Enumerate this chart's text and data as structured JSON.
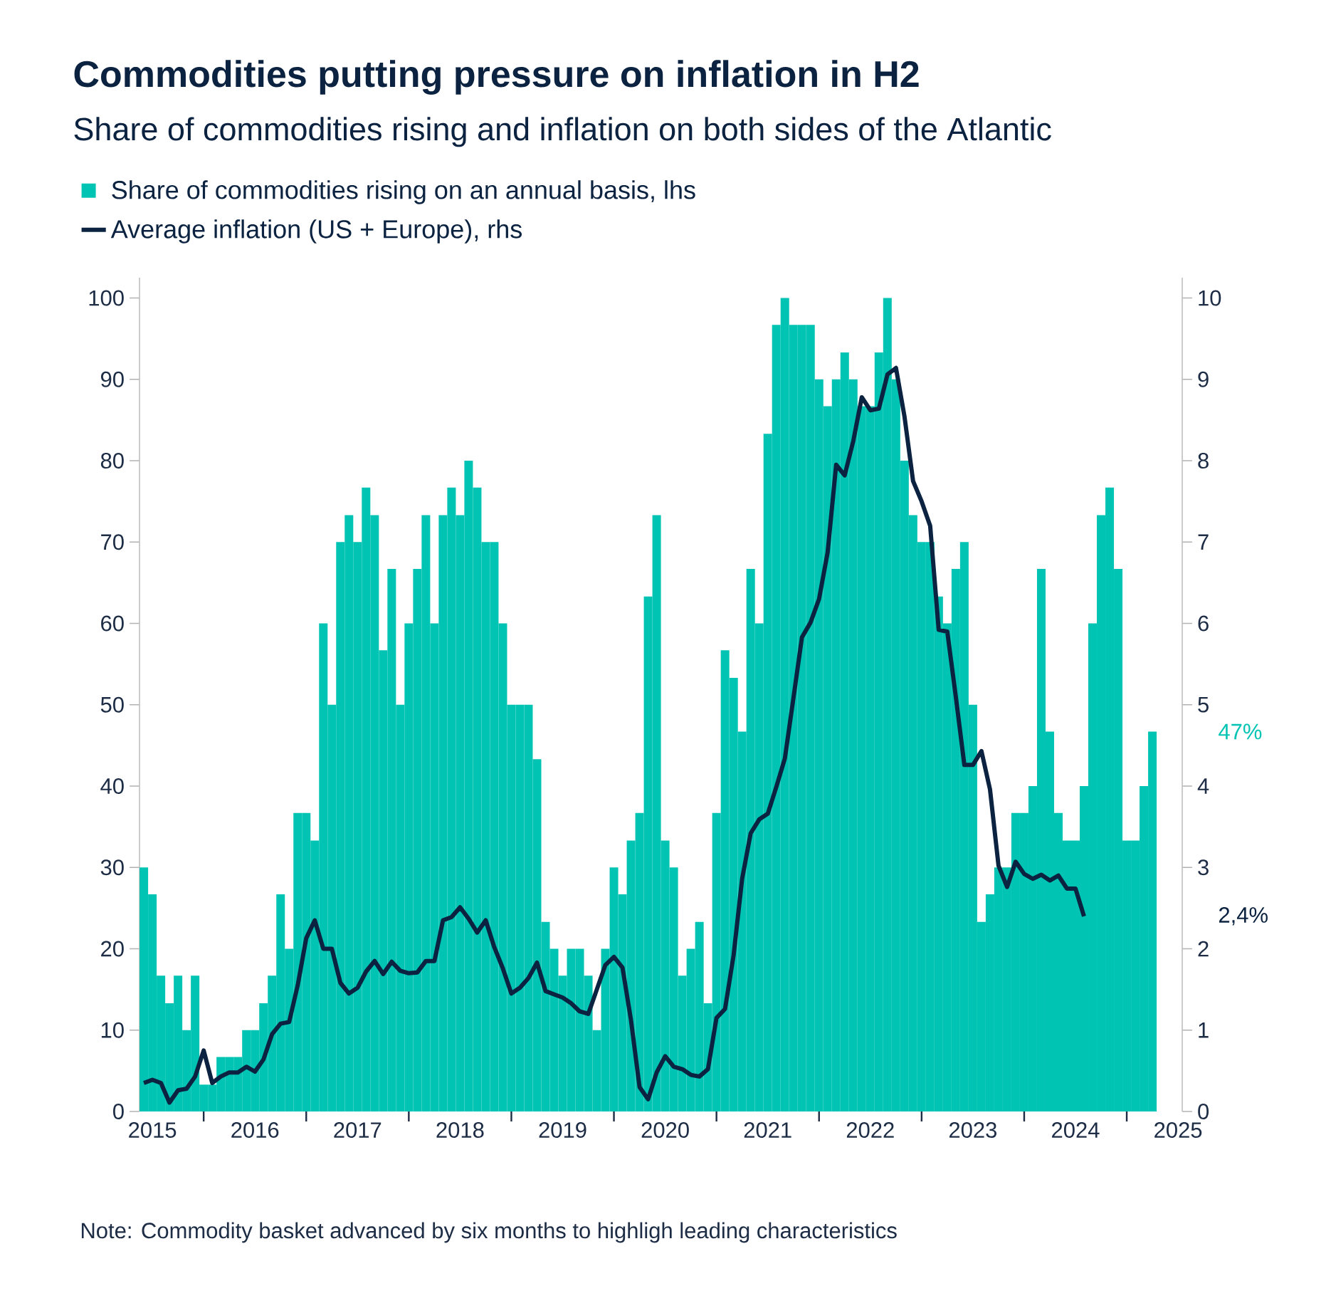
{
  "chart_data": {
    "type": "bar",
    "title": "Commodities putting pressure on inflation in H2",
    "subtitle": "Share of commodities rising and inflation on both sides of the Atlantic",
    "x": [
      "2015-06",
      "2015-07",
      "2015-08",
      "2015-09",
      "2015-10",
      "2015-11",
      "2015-12",
      "2016-01",
      "2016-02",
      "2016-03",
      "2016-04",
      "2016-05",
      "2016-06",
      "2016-07",
      "2016-08",
      "2016-09",
      "2016-10",
      "2016-11",
      "2016-12",
      "2017-01",
      "2017-02",
      "2017-03",
      "2017-04",
      "2017-05",
      "2017-06",
      "2017-07",
      "2017-08",
      "2017-09",
      "2017-10",
      "2017-11",
      "2017-12",
      "2018-01",
      "2018-02",
      "2018-03",
      "2018-04",
      "2018-05",
      "2018-06",
      "2018-07",
      "2018-08",
      "2018-09",
      "2018-10",
      "2018-11",
      "2018-12",
      "2019-01",
      "2019-02",
      "2019-03",
      "2019-04",
      "2019-05",
      "2019-06",
      "2019-07",
      "2019-08",
      "2019-09",
      "2019-10",
      "2019-11",
      "2019-12",
      "2020-01",
      "2020-02",
      "2020-03",
      "2020-04",
      "2020-05",
      "2020-06",
      "2020-07",
      "2020-08",
      "2020-09",
      "2020-10",
      "2020-11",
      "2020-12",
      "2021-01",
      "2021-02",
      "2021-03",
      "2021-04",
      "2021-05",
      "2021-06",
      "2021-07",
      "2021-08",
      "2021-09",
      "2021-10",
      "2021-11",
      "2021-12",
      "2022-01",
      "2022-02",
      "2022-03",
      "2022-04",
      "2022-05",
      "2022-06",
      "2022-07",
      "2022-08",
      "2022-09",
      "2022-10",
      "2022-11",
      "2022-12",
      "2023-01",
      "2023-02",
      "2023-03",
      "2023-04",
      "2023-05",
      "2023-06",
      "2023-07",
      "2023-08",
      "2023-09",
      "2023-10",
      "2023-11",
      "2023-12",
      "2024-01",
      "2024-02",
      "2024-03",
      "2024-04",
      "2024-05",
      "2024-06",
      "2024-07",
      "2024-08",
      "2024-09",
      "2024-10",
      "2024-11",
      "2024-12",
      "2025-01",
      "2025-02",
      "2025-03",
      "2025-04"
    ],
    "series": [
      {
        "name": "Share of commodities rising on an annual basis, lhs",
        "color": "#00c4b3",
        "values": [
          30,
          26.7,
          16.7,
          13.3,
          16.7,
          10,
          16.7,
          3.3,
          3.3,
          6.7,
          6.7,
          6.7,
          10,
          10,
          13.3,
          16.7,
          26.7,
          20,
          36.7,
          36.7,
          33.3,
          60,
          50,
          70,
          73.3,
          70,
          76.7,
          73.3,
          56.7,
          66.7,
          50,
          60,
          66.7,
          73.3,
          60,
          73.3,
          76.7,
          73.3,
          80,
          76.7,
          70,
          70,
          60,
          50,
          50,
          50,
          43.3,
          23.3,
          20,
          16.7,
          20,
          20,
          16.7,
          10,
          20,
          30,
          26.7,
          33.3,
          36.7,
          63.3,
          73.3,
          33.3,
          30,
          16.7,
          20,
          23.3,
          13.3,
          36.7,
          56.7,
          53.3,
          46.7,
          66.7,
          60,
          83.3,
          96.7,
          100,
          96.7,
          96.7,
          96.7,
          90,
          86.7,
          90,
          93.3,
          90,
          86.7,
          86.7,
          93.3,
          100,
          90,
          80,
          73.3,
          70,
          70,
          63.3,
          60,
          66.7,
          70,
          50,
          23.3,
          26.7,
          30,
          30,
          36.7,
          36.7,
          40,
          66.7,
          46.7,
          36.7,
          33.3,
          33.3,
          40,
          60,
          73.3,
          76.7,
          66.7,
          33.3,
          33.3,
          40,
          46.7
        ]
      },
      {
        "name": "Average inflation (US + Europe), rhs",
        "color": "#0b2340",
        "type": "line",
        "axis": "y2",
        "x": [
          "2015-06",
          "2015-07",
          "2015-08",
          "2015-09",
          "2015-10",
          "2015-11",
          "2015-12",
          "2016-01",
          "2016-02",
          "2016-03",
          "2016-04",
          "2016-05",
          "2016-06",
          "2016-07",
          "2016-08",
          "2016-09",
          "2016-10",
          "2016-11",
          "2016-12",
          "2017-01",
          "2017-02",
          "2017-03",
          "2017-04",
          "2017-05",
          "2017-06",
          "2017-07",
          "2017-08",
          "2017-09",
          "2017-10",
          "2017-11",
          "2017-12",
          "2018-01",
          "2018-02",
          "2018-03",
          "2018-04",
          "2018-05",
          "2018-06",
          "2018-07",
          "2018-08",
          "2018-09",
          "2018-10",
          "2018-11",
          "2018-12",
          "2019-01",
          "2019-02",
          "2019-03",
          "2019-04",
          "2019-05",
          "2019-06",
          "2019-07",
          "2019-08",
          "2019-09",
          "2019-10",
          "2019-11",
          "2019-12",
          "2020-01",
          "2020-02",
          "2020-03",
          "2020-04",
          "2020-05",
          "2020-06",
          "2020-07",
          "2020-08",
          "2020-09",
          "2020-10",
          "2020-11",
          "2020-12",
          "2021-01",
          "2021-02",
          "2021-03",
          "2021-04",
          "2021-05",
          "2021-06",
          "2021-07",
          "2021-08",
          "2021-09",
          "2021-10",
          "2021-11",
          "2021-12",
          "2022-01",
          "2022-02",
          "2022-03",
          "2022-04",
          "2022-05",
          "2022-06",
          "2022-07",
          "2022-08",
          "2022-09",
          "2022-10",
          "2022-11",
          "2022-12",
          "2023-01",
          "2023-02",
          "2023-03",
          "2023-04",
          "2023-05",
          "2023-06",
          "2023-07",
          "2023-08",
          "2023-09",
          "2023-10",
          "2023-11",
          "2023-12",
          "2024-01",
          "2024-02",
          "2024-03",
          "2024-04",
          "2024-05",
          "2024-06",
          "2024-07",
          "2024-08"
        ],
        "values": [
          0.35,
          0.39,
          0.35,
          0.11,
          0.26,
          0.28,
          0.43,
          0.75,
          0.35,
          0.43,
          0.48,
          0.48,
          0.55,
          0.49,
          0.64,
          0.95,
          1.08,
          1.1,
          1.55,
          2.13,
          2.35,
          2.0,
          2.0,
          1.58,
          1.45,
          1.52,
          1.72,
          1.85,
          1.69,
          1.84,
          1.73,
          1.7,
          1.71,
          1.85,
          1.85,
          2.35,
          2.39,
          2.51,
          2.37,
          2.2,
          2.35,
          2.02,
          1.76,
          1.45,
          1.52,
          1.64,
          1.83,
          1.48,
          1.44,
          1.4,
          1.33,
          1.23,
          1.2,
          1.5,
          1.8,
          1.9,
          1.77,
          1.12,
          0.3,
          0.15,
          0.48,
          0.68,
          0.55,
          0.52,
          0.45,
          0.43,
          0.52,
          1.15,
          1.26,
          1.92,
          2.86,
          3.42,
          3.59,
          3.66,
          3.99,
          4.34,
          5.08,
          5.83,
          6.01,
          6.3,
          6.87,
          7.95,
          7.82,
          8.24,
          8.78,
          8.62,
          8.64,
          9.06,
          9.14,
          8.54,
          7.75,
          7.5,
          7.2,
          5.92,
          5.9,
          5.1,
          4.26,
          4.26,
          4.43,
          3.96,
          3.02,
          2.76,
          3.07,
          2.92,
          2.86,
          2.91,
          2.84,
          2.9,
          2.74,
          2.74,
          2.4
        ]
      }
    ],
    "xlim": [
      "2015-05-16",
      "2025-07-16"
    ],
    "xticks": [
      {
        "value": "2015-07",
        "label": "2015"
      },
      {
        "value": "2016-01",
        "label": null
      },
      {
        "value": "2016-07",
        "label": "2016"
      },
      {
        "value": "2017-01",
        "label": null
      },
      {
        "value": "2017-07",
        "label": "2017"
      },
      {
        "value": "2018-01",
        "label": null
      },
      {
        "value": "2018-07",
        "label": "2018"
      },
      {
        "value": "2019-01",
        "label": null
      },
      {
        "value": "2019-07",
        "label": "2019"
      },
      {
        "value": "2020-01",
        "label": null
      },
      {
        "value": "2020-07",
        "label": "2020"
      },
      {
        "value": "2021-01",
        "label": null
      },
      {
        "value": "2021-07",
        "label": "2021"
      },
      {
        "value": "2022-01",
        "label": null
      },
      {
        "value": "2022-07",
        "label": "2022"
      },
      {
        "value": "2023-01",
        "label": null
      },
      {
        "value": "2023-07",
        "label": "2023"
      },
      {
        "value": "2024-01",
        "label": null
      },
      {
        "value": "2024-07",
        "label": "2024"
      },
      {
        "value": "2025-01",
        "label": null
      },
      {
        "value": "2025-07",
        "label": "2025"
      }
    ],
    "ylim": [
      0,
      102.5
    ],
    "yticks": [
      0,
      10,
      20,
      30,
      40,
      50,
      60,
      70,
      80,
      90,
      100
    ],
    "y2lim": [
      0,
      10.25
    ],
    "y2ticks": [
      0,
      1,
      2,
      3,
      4,
      5,
      6,
      7,
      8,
      9,
      10
    ],
    "legend": "top left",
    "annotations": [
      "Note: Commodity basket advanced by six months to highligh leading characteristics",
      "47%",
      "2,4%"
    ]
  }
}
